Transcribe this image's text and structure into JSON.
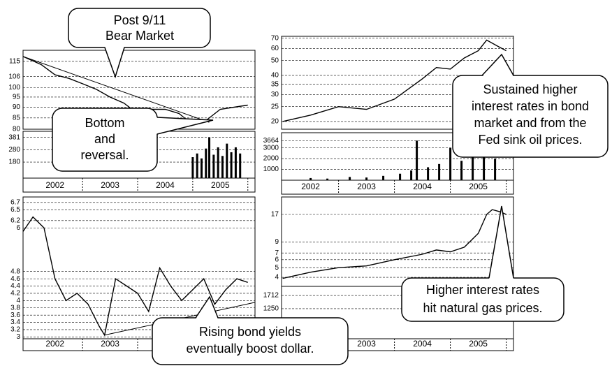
{
  "chart_data": [
    {
      "type": "line",
      "color": "#000000",
      "log": true,
      "grid": true,
      "xlim": [
        2001.92,
        2006.13
      ],
      "xticks": [
        2002,
        2003,
        2004,
        2005
      ],
      "ylim": [
        80,
        122
      ],
      "yticks": [
        115,
        106,
        100,
        95,
        90,
        85,
        80
      ],
      "x": [
        2001.92,
        2002.25,
        2002.5,
        2002.75,
        2003.0,
        2003.25,
        2003.5,
        2003.75,
        2004.0,
        2004.25,
        2004.5,
        2004.75,
        2005.0,
        2005.25,
        2005.5,
        2005.75,
        2006.0
      ],
      "values": [
        118,
        113,
        107,
        105,
        102,
        99,
        95,
        92,
        87,
        89,
        89,
        87,
        82,
        84,
        89,
        90,
        91
      ],
      "trendline": {
        "x": [
          2001.92,
          2005.3
        ],
        "values": [
          118,
          83
        ]
      },
      "volume": {
        "ylim": [
          50,
          430
        ],
        "yticks": [
          381,
          280,
          180
        ],
        "x": [
          2005.0,
          2005.08,
          2005.16,
          2005.24,
          2005.3,
          2005.38,
          2005.46,
          2005.54,
          2005.62,
          2005.7,
          2005.78,
          2005.86
        ],
        "values": [
          220,
          250,
          210,
          290,
          381,
          240,
          300,
          230,
          330,
          260,
          300,
          250
        ]
      }
    },
    {
      "type": "line",
      "color": "#000000",
      "log": true,
      "grid": true,
      "xlim": [
        2001.98,
        2006.13
      ],
      "xticks": [
        2002,
        2003,
        2004,
        2005
      ],
      "ylim": [
        17.8,
        72
      ],
      "yticks": [
        70,
        60,
        50,
        40,
        35,
        30,
        25,
        20
      ],
      "x": [
        2002.0,
        2002.5,
        2003.0,
        2003.5,
        2004.0,
        2004.5,
        2004.75,
        2005.0,
        2005.25,
        2005.5,
        2005.65,
        2005.85,
        2006.0
      ],
      "values": [
        20,
        22,
        25,
        24,
        28,
        38,
        45,
        44,
        52,
        58,
        68,
        62,
        58
      ],
      "volume": {
        "ylim": [
          0,
          4400
        ],
        "yticks": [
          3664,
          3000,
          2000,
          1000
        ],
        "x": [
          2002.5,
          2002.8,
          2003.2,
          2003.5,
          2003.8,
          2004.1,
          2004.3,
          2004.4,
          2004.6,
          2004.8,
          2005.0,
          2005.2,
          2005.4,
          2005.6,
          2005.8
        ],
        "values": [
          200,
          150,
          300,
          250,
          400,
          600,
          900,
          3664,
          1200,
          1500,
          3000,
          1800,
          2200,
          2600,
          2000
        ]
      }
    },
    {
      "type": "line",
      "color": "#000000",
      "log": false,
      "grid": true,
      "xlim": [
        2001.92,
        2006.13
      ],
      "xticks": [
        2002,
        2003,
        2004,
        2005
      ],
      "ylim": [
        2.95,
        6.85
      ],
      "yticks": [
        6.7,
        6.5,
        6.2,
        6.0,
        4.8,
        4.6,
        4.4,
        4.2,
        4.0,
        3.8,
        3.6,
        3.4,
        3.2,
        3.0
      ],
      "x": [
        2001.92,
        2002.1,
        2002.3,
        2002.5,
        2002.7,
        2002.9,
        2003.1,
        2003.3,
        2003.4,
        2003.6,
        2003.8,
        2004.0,
        2004.2,
        2004.4,
        2004.6,
        2004.8,
        2005.0,
        2005.2,
        2005.4,
        2005.6,
        2005.8,
        2006.0
      ],
      "values": [
        5.9,
        6.3,
        6.0,
        4.6,
        4.0,
        4.2,
        3.9,
        3.3,
        3.05,
        4.6,
        4.4,
        4.2,
        3.7,
        4.9,
        4.4,
        4.0,
        4.3,
        4.6,
        3.9,
        4.3,
        4.6,
        4.5
      ],
      "trendline": {
        "x": [
          2003.4,
          2006.13
        ],
        "values": [
          3.05,
          3.95
        ]
      }
    },
    {
      "type": "line",
      "color": "#000000",
      "log": true,
      "grid": true,
      "xlim": [
        2001.98,
        2006.13
      ],
      "xticks": [
        2002,
        2003,
        2004,
        2005
      ],
      "ylim": [
        3.25,
        25.4
      ],
      "yticks": [
        17,
        9,
        7,
        6,
        5,
        4
      ],
      "x": [
        2002.0,
        2002.5,
        2003.0,
        2003.5,
        2004.0,
        2004.5,
        2004.75,
        2005.0,
        2005.25,
        2005.5,
        2005.65,
        2005.75,
        2005.9,
        2006.0
      ],
      "values": [
        3.9,
        4.5,
        5.0,
        5.2,
        6.0,
        6.8,
        7.5,
        7.2,
        8.0,
        11,
        17,
        19,
        18,
        17
      ],
      "volume": {
        "ylim": [
          200,
          2030
        ],
        "yticks": [
          1712,
          1250
        ]
      }
    }
  ],
  "callouts": [
    {
      "lines": [
        "Post 9/11",
        "Bear Market"
      ]
    },
    {
      "lines": [
        "Bottom",
        "and",
        "reversal."
      ]
    },
    {
      "lines": [
        "Sustained higher",
        "interest rates in bond",
        "market and from the",
        "Fed sink oil prices."
      ]
    },
    {
      "lines": [
        "Higher interest rates",
        "hit natural gas prices."
      ]
    },
    {
      "lines": [
        "Rising bond yields",
        "eventually boost dollar."
      ]
    }
  ]
}
